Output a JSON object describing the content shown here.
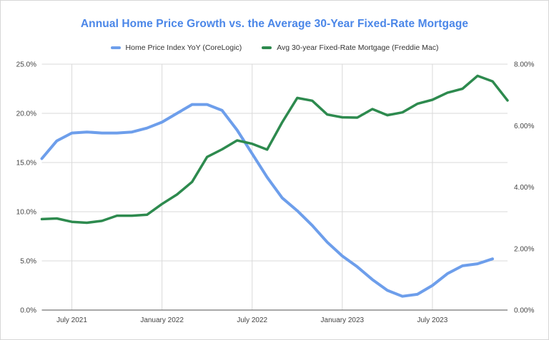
{
  "frame": {
    "background": "#ffffff",
    "border_color": "#d6d6d6"
  },
  "chart_data": {
    "type": "line",
    "title": "Annual Home Price Growth vs. the Average 30-Year Fixed-Rate Mortgage",
    "title_color": "#4a86e8",
    "categories": [
      "May 2021",
      "Jun 2021",
      "Jul 2021",
      "Aug 2021",
      "Sep 2021",
      "Oct 2021",
      "Nov 2021",
      "Dec 2021",
      "Jan 2022",
      "Feb 2022",
      "Mar 2022",
      "Apr 2022",
      "May 2022",
      "Jun 2022",
      "Jul 2022",
      "Aug 2022",
      "Sep 2022",
      "Oct 2022",
      "Nov 2022",
      "Dec 2022",
      "Jan 2023",
      "Feb 2023",
      "Mar 2023",
      "Apr 2023",
      "May 2023",
      "Jun 2023",
      "Jul 2023",
      "Aug 2023",
      "Sep 2023",
      "Oct 2023",
      "Nov 2023",
      "Dec 2023"
    ],
    "series": [
      {
        "name": "Home Price Index YoY (CoreLogic)",
        "axis": "left",
        "color": "#6d9eeb",
        "values": [
          15.4,
          17.2,
          18.0,
          18.1,
          18.0,
          18.0,
          18.1,
          18.5,
          19.1,
          20.0,
          20.9,
          20.9,
          20.3,
          18.3,
          15.9,
          13.5,
          11.4,
          10.1,
          8.6,
          6.9,
          5.5,
          4.4,
          3.1,
          2.0,
          1.4,
          1.6,
          2.5,
          3.7,
          4.5,
          4.7,
          5.2,
          null
        ]
      },
      {
        "name": "Avg 30-year Fixed-Rate Mortgage (Freddie Mac)",
        "axis": "right",
        "color": "#2d8a4e",
        "values": [
          2.96,
          2.98,
          2.87,
          2.84,
          2.9,
          3.07,
          3.07,
          3.1,
          3.45,
          3.76,
          4.17,
          4.98,
          5.23,
          5.52,
          5.41,
          5.22,
          6.11,
          6.9,
          6.81,
          6.36,
          6.27,
          6.26,
          6.54,
          6.34,
          6.43,
          6.71,
          6.84,
          7.07,
          7.2,
          7.62,
          7.44,
          6.82
        ]
      }
    ],
    "left_axis": {
      "min": 0,
      "max": 25,
      "ticks": [
        {
          "v": 0,
          "label": "0.0%"
        },
        {
          "v": 5,
          "label": "5.0%"
        },
        {
          "v": 10,
          "label": "10.0%"
        },
        {
          "v": 15,
          "label": "15.0%"
        },
        {
          "v": 20,
          "label": "20.0%"
        },
        {
          "v": 25,
          "label": "25.0%"
        }
      ]
    },
    "right_axis": {
      "min": 0,
      "max": 8,
      "ticks": [
        {
          "v": 0,
          "label": "0.00%"
        },
        {
          "v": 2,
          "label": "2.00%"
        },
        {
          "v": 4,
          "label": "4.00%"
        },
        {
          "v": 6,
          "label": "6.00%"
        },
        {
          "v": 8,
          "label": "8.00%"
        }
      ]
    },
    "x_ticks": [
      {
        "index": 2,
        "label": "July 2021"
      },
      {
        "index": 8,
        "label": "January 2022"
      },
      {
        "index": 14,
        "label": "July 2022"
      },
      {
        "index": 20,
        "label": "January 2023"
      },
      {
        "index": 26,
        "label": "July 2023"
      }
    ],
    "grid_color": "#d9d9d9",
    "axis_line_color": "#757575",
    "axis_text_color": "#444444",
    "legend_position": "top",
    "grid": "on"
  }
}
